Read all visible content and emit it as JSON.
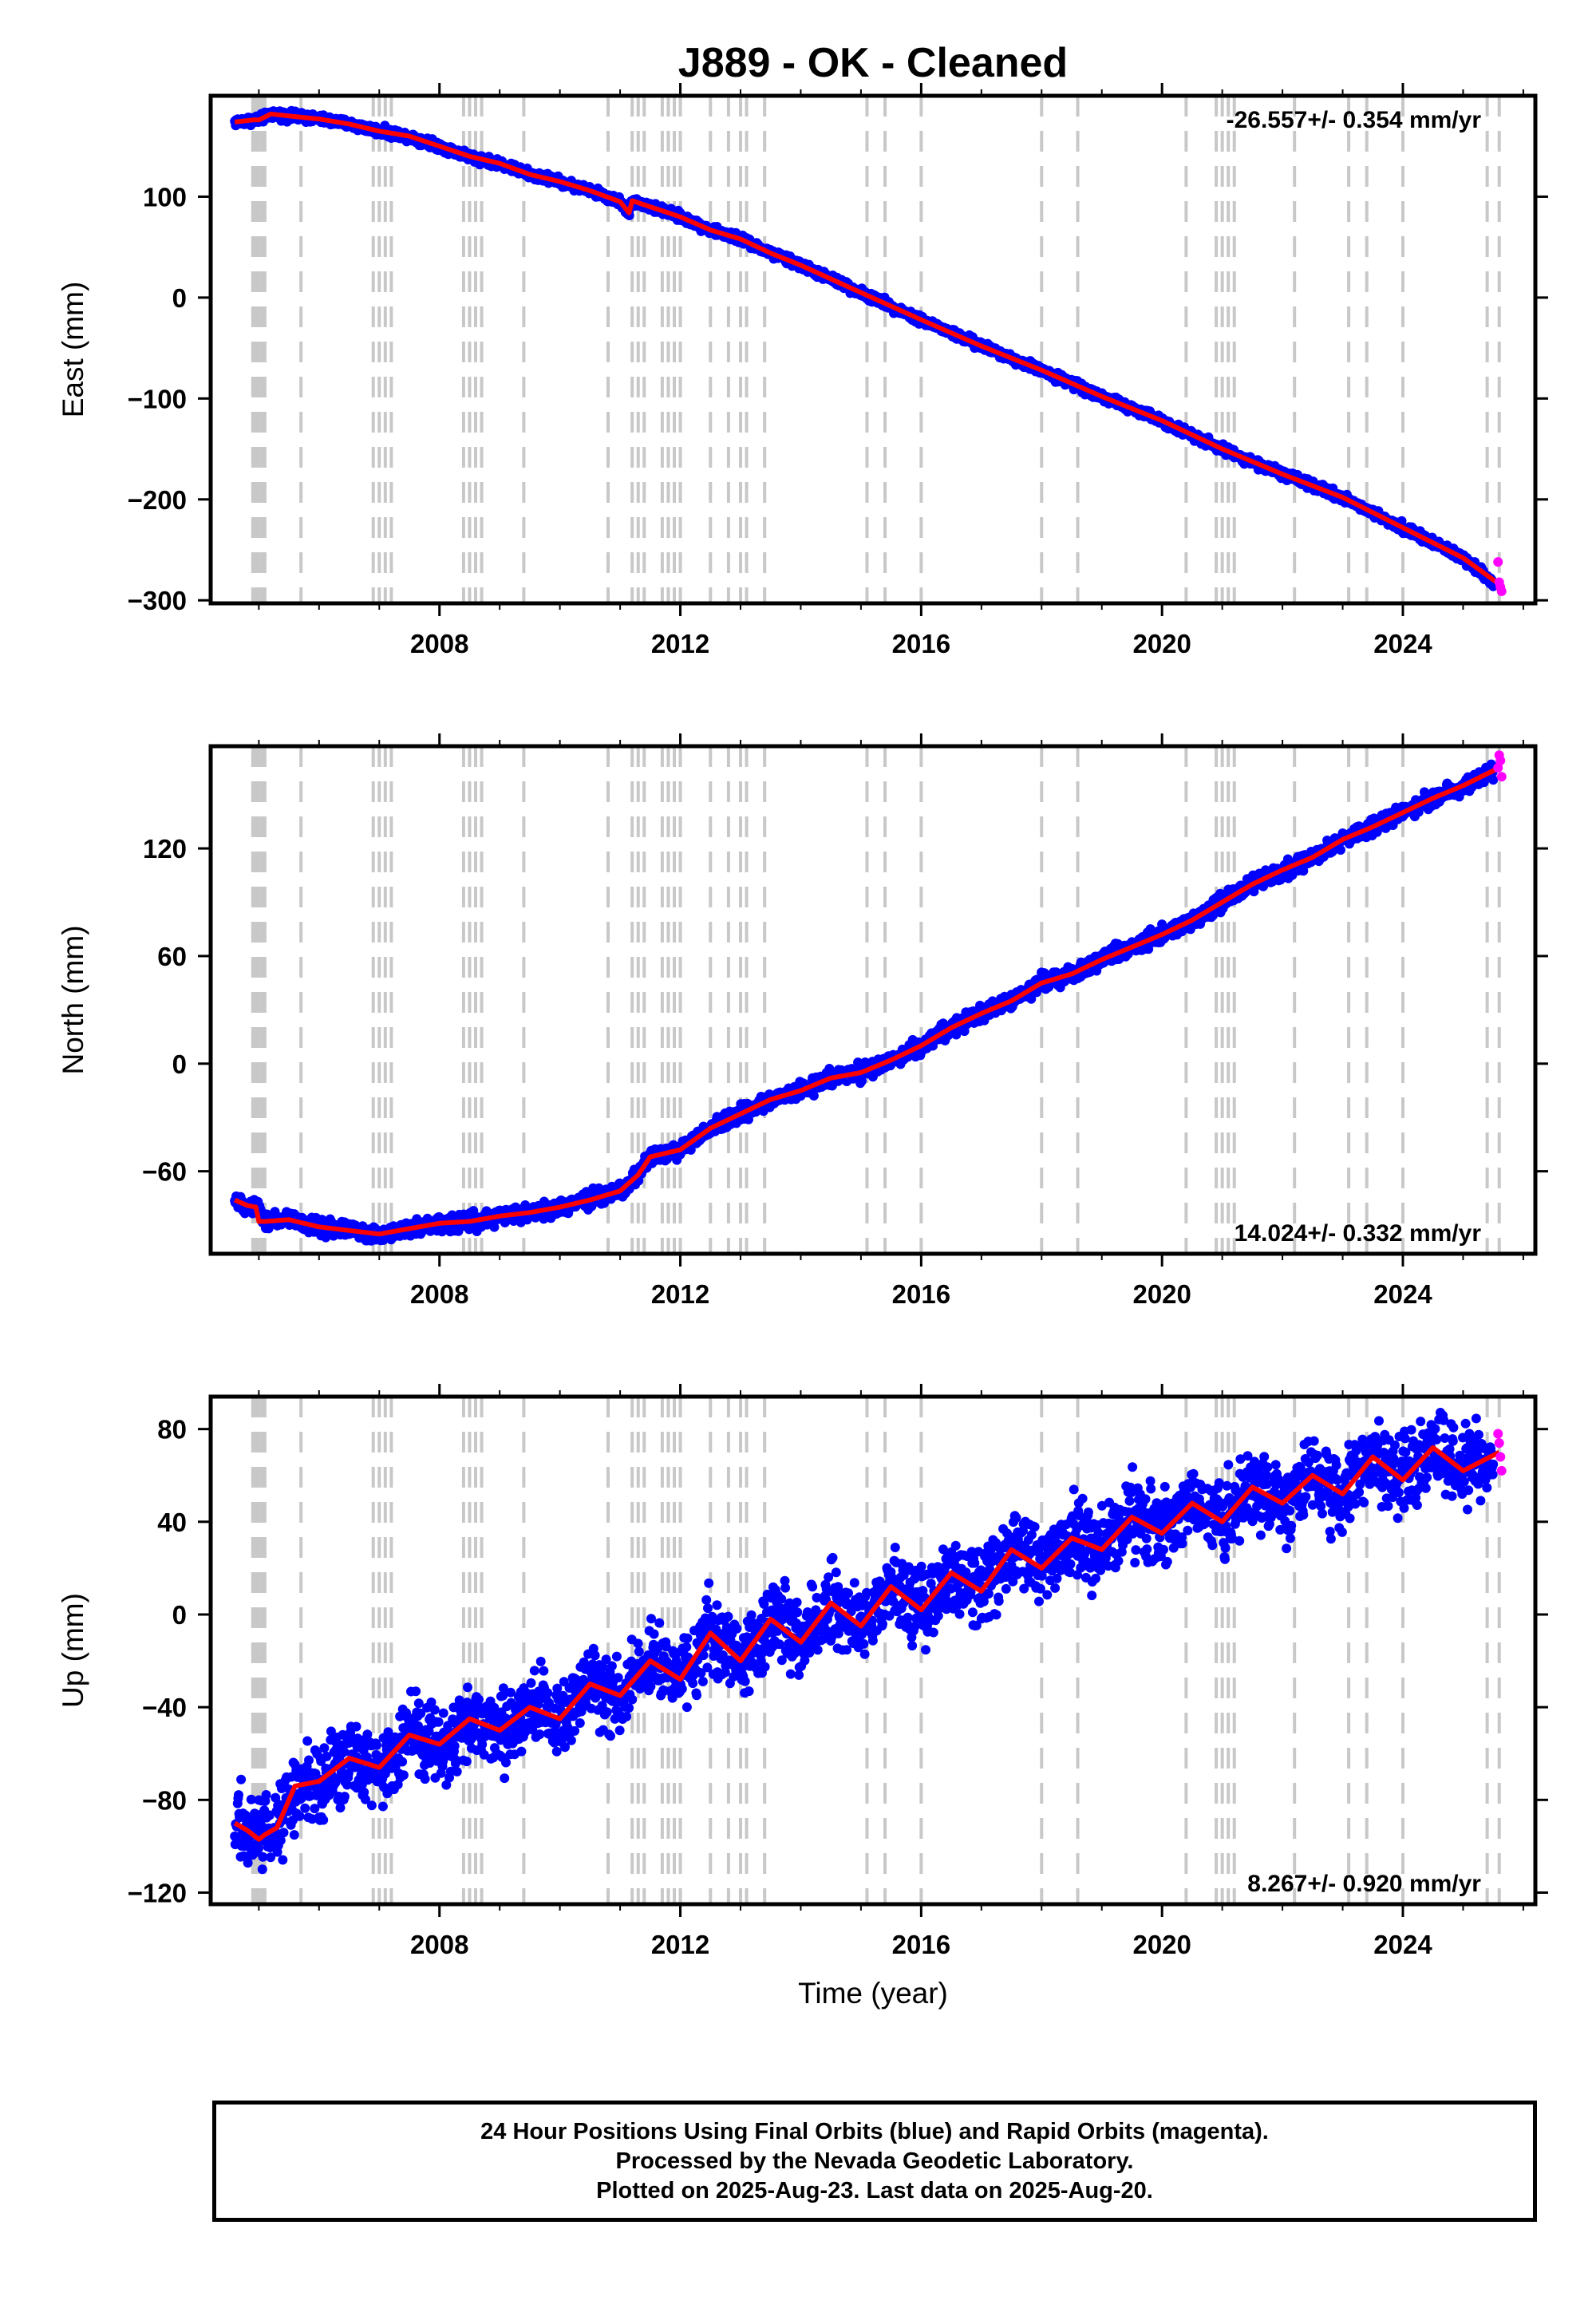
{
  "title": "J889  - OK - Cleaned",
  "x_axis_label": "Time (year)",
  "colors": {
    "final_orbits": "#0000ff",
    "rapid_orbits": "#ff00ff",
    "model": "#ff0000",
    "event_lines": "#c8c8c8",
    "frame": "#000000"
  },
  "caption": {
    "line1": "24 Hour Positions Using Final Orbits (blue) and Rapid Orbits (magenta).",
    "line2": "Processed by the Nevada Geodetic Laboratory.",
    "line3": "Plotted on 2025-Aug-23. Last data on 2025-Aug-20."
  },
  "chart_data": [
    {
      "type": "scatter",
      "component": "east",
      "ylabel": "East (mm)",
      "rate_text": "-26.557+/- 0.354 mm/yr",
      "rate_position": "top-right",
      "xlim": [
        2004.2,
        2026.2
      ],
      "ylim": [
        -303,
        200
      ],
      "x_ticks": [
        2008,
        2012,
        2016,
        2020,
        2024
      ],
      "y_ticks": [
        -300,
        -200,
        -100,
        0,
        100
      ],
      "y_tick_labels": [
        "−300",
        "−200",
        "−100",
        "0",
        "100"
      ],
      "grid": false,
      "series": [
        {
          "name": "Final Orbits",
          "color": "#0000ff",
          "x": [
            2004.6,
            2004.9,
            2005.0,
            2005.2,
            2005.5,
            2006.0,
            2006.5,
            2007.0,
            2007.5,
            2008.0,
            2008.5,
            2009.0,
            2009.5,
            2010.0,
            2010.5,
            2011.0,
            2011.15,
            2011.2,
            2011.5,
            2012.0,
            2012.5,
            2013.0,
            2013.5,
            2014.0,
            2015.0,
            2016.0,
            2017.0,
            2018.0,
            2019.0,
            2020.0,
            2021.0,
            2022.0,
            2023.0,
            2024.0,
            2025.0,
            2025.5
          ],
          "y": [
            174,
            176,
            176,
            182,
            180,
            177,
            172,
            165,
            160,
            150,
            140,
            133,
            122,
            115,
            106,
            95,
            84,
            96,
            90,
            80,
            67,
            58,
            44,
            32,
            5,
            -22,
            -48,
            -72,
            -98,
            -122,
            -150,
            -175,
            -198,
            -228,
            -258,
            -282
          ]
        },
        {
          "name": "Rapid Orbits",
          "color": "#ff00ff",
          "x": [
            2025.58,
            2025.6,
            2025.62,
            2025.64
          ],
          "y": [
            -262,
            -282,
            -287,
            -291
          ]
        },
        {
          "name": "Model",
          "color": "#ff0000",
          "x": [
            2004.6,
            2004.9,
            2005.0,
            2005.2,
            2005.5,
            2006.0,
            2006.5,
            2007.0,
            2007.5,
            2008.0,
            2008.5,
            2009.0,
            2009.5,
            2010.0,
            2010.5,
            2011.0,
            2011.15,
            2011.2,
            2011.5,
            2012.0,
            2012.5,
            2013.0,
            2013.5,
            2014.0,
            2015.0,
            2016.0,
            2017.0,
            2018.0,
            2019.0,
            2020.0,
            2021.0,
            2022.0,
            2023.0,
            2024.0,
            2025.0,
            2025.6
          ],
          "y": [
            174,
            176,
            176,
            182,
            180,
            177,
            172,
            165,
            160,
            150,
            140,
            133,
            122,
            115,
            106,
            95,
            84,
            96,
            90,
            80,
            67,
            58,
            44,
            32,
            5,
            -22,
            -48,
            -72,
            -98,
            -122,
            -150,
            -175,
            -198,
            -228,
            -258,
            -284
          ]
        }
      ]
    },
    {
      "type": "scatter",
      "component": "north",
      "ylabel": "North (mm)",
      "rate_text": "14.024+/- 0.332 mm/yr",
      "rate_position": "bottom-right",
      "xlim": [
        2004.2,
        2026.2
      ],
      "ylim": [
        -106,
        177
      ],
      "x_ticks": [
        2008,
        2012,
        2016,
        2020,
        2024
      ],
      "y_ticks": [
        -60,
        0,
        60,
        120
      ],
      "y_tick_labels": [
        "−60",
        "0",
        "60",
        "120"
      ],
      "grid": false,
      "series": [
        {
          "name": "Final Orbits",
          "color": "#0000ff",
          "x": [
            2004.6,
            2004.8,
            2005.0,
            2005.1,
            2005.5,
            2006.0,
            2006.5,
            2007.0,
            2007.5,
            2008.0,
            2008.5,
            2009.0,
            2009.5,
            2010.0,
            2010.5,
            2011.0,
            2011.3,
            2011.5,
            2012.0,
            2012.5,
            2013.0,
            2013.5,
            2014.0,
            2014.5,
            2015.0,
            2015.5,
            2016.0,
            2016.5,
            2017.0,
            2017.5,
            2018.0,
            2018.5,
            2019.0,
            2019.5,
            2020.0,
            2020.5,
            2021.0,
            2021.5,
            2022.0,
            2022.5,
            2023.0,
            2023.5,
            2024.0,
            2024.5,
            2025.0,
            2025.5
          ],
          "y": [
            -76,
            -79,
            -80,
            -88,
            -87,
            -91,
            -93,
            -95,
            -92,
            -89,
            -88,
            -85,
            -83,
            -80,
            -76,
            -71,
            -62,
            -52,
            -48,
            -36,
            -28,
            -20,
            -15,
            -8,
            -5,
            2,
            10,
            20,
            28,
            35,
            45,
            50,
            58,
            65,
            72,
            80,
            90,
            100,
            108,
            115,
            125,
            132,
            140,
            148,
            155,
            163
          ]
        },
        {
          "name": "Rapid Orbits",
          "color": "#ff00ff",
          "x": [
            2025.58,
            2025.6,
            2025.62,
            2025.64
          ],
          "y": [
            165,
            172,
            169,
            160
          ]
        },
        {
          "name": "Model",
          "color": "#ff0000",
          "x": [
            2004.6,
            2004.8,
            2004.95,
            2005.0,
            2005.1,
            2005.5,
            2006.0,
            2006.5,
            2007.0,
            2007.5,
            2008.0,
            2008.5,
            2009.0,
            2009.5,
            2010.0,
            2010.5,
            2011.0,
            2011.3,
            2011.5,
            2012.0,
            2012.5,
            2013.0,
            2013.5,
            2014.0,
            2014.5,
            2015.0,
            2015.5,
            2016.0,
            2016.5,
            2017.0,
            2017.5,
            2018.0,
            2018.5,
            2019.0,
            2019.5,
            2020.0,
            2020.5,
            2021.0,
            2021.5,
            2022.0,
            2022.5,
            2023.0,
            2023.5,
            2024.0,
            2024.5,
            2025.0,
            2025.6
          ],
          "y": [
            -76,
            -79,
            -80,
            -88,
            -88,
            -87,
            -91,
            -93,
            -95,
            -92,
            -89,
            -88,
            -85,
            -83,
            -80,
            -76,
            -71,
            -62,
            -52,
            -48,
            -36,
            -28,
            -20,
            -15,
            -8,
            -5,
            2,
            10,
            20,
            28,
            35,
            45,
            50,
            58,
            65,
            72,
            80,
            90,
            100,
            108,
            115,
            125,
            132,
            140,
            148,
            155,
            165
          ]
        }
      ]
    },
    {
      "type": "scatter",
      "component": "up",
      "ylabel": "Up (mm)",
      "rate_text": "8.267+/- 0.920 mm/yr",
      "rate_position": "bottom-right",
      "xlim": [
        2004.2,
        2026.2
      ],
      "ylim": [
        -125,
        94
      ],
      "x_ticks": [
        2008,
        2012,
        2016,
        2020,
        2024
      ],
      "y_ticks": [
        -120,
        -80,
        -40,
        0,
        40,
        80
      ],
      "y_tick_labels": [
        "−120",
        "−80",
        "−40",
        "0",
        "40",
        "80"
      ],
      "grid": false,
      "series": [
        {
          "name": "Final Orbits",
          "color": "#0000ff",
          "x": [
            2004.6,
            2005.0,
            2005.3,
            2005.6,
            2006.0,
            2006.5,
            2007.0,
            2007.5,
            2008.0,
            2008.5,
            2009.0,
            2009.5,
            2010.0,
            2010.5,
            2011.0,
            2011.5,
            2012.0,
            2012.5,
            2013.0,
            2013.5,
            2014.0,
            2014.5,
            2015.0,
            2015.5,
            2016.0,
            2016.5,
            2017.0,
            2017.5,
            2018.0,
            2018.5,
            2019.0,
            2019.5,
            2020.0,
            2020.5,
            2021.0,
            2021.5,
            2022.0,
            2022.5,
            2023.0,
            2023.5,
            2024.0,
            2024.5,
            2025.0,
            2025.5
          ],
          "y": [
            -90,
            -95,
            -92,
            -75,
            -72,
            -62,
            -66,
            -52,
            -56,
            -45,
            -50,
            -40,
            -45,
            -30,
            -35,
            -20,
            -28,
            -8,
            -20,
            -2,
            -12,
            5,
            -5,
            12,
            2,
            18,
            10,
            28,
            20,
            33,
            28,
            42,
            35,
            48,
            40,
            55,
            48,
            60,
            52,
            68,
            58,
            72,
            62,
            68
          ]
        },
        {
          "name": "Rapid Orbits",
          "color": "#ff00ff",
          "x": [
            2025.58,
            2025.6,
            2025.62,
            2025.64
          ],
          "y": [
            78,
            74,
            68,
            62
          ]
        },
        {
          "name": "Model",
          "color": "#ff0000",
          "x": [
            2004.6,
            2004.8,
            2005.0,
            2005.1,
            2005.3,
            2005.6,
            2006.0,
            2006.5,
            2007.0,
            2007.5,
            2008.0,
            2008.5,
            2009.0,
            2009.5,
            2010.0,
            2010.5,
            2011.0,
            2011.5,
            2012.0,
            2012.5,
            2013.0,
            2013.5,
            2014.0,
            2014.5,
            2015.0,
            2015.5,
            2016.0,
            2016.5,
            2017.0,
            2017.5,
            2018.0,
            2018.5,
            2019.0,
            2019.5,
            2020.0,
            2020.5,
            2021.0,
            2021.5,
            2022.0,
            2022.5,
            2023.0,
            2023.5,
            2024.0,
            2024.5,
            2025.0,
            2025.6
          ],
          "y": [
            -90,
            -93,
            -97,
            -95,
            -92,
            -74,
            -72,
            -62,
            -66,
            -52,
            -56,
            -45,
            -50,
            -40,
            -45,
            -30,
            -35,
            -20,
            -28,
            -8,
            -20,
            -2,
            -12,
            5,
            -5,
            12,
            2,
            18,
            10,
            28,
            20,
            33,
            28,
            42,
            35,
            48,
            40,
            55,
            48,
            60,
            52,
            68,
            58,
            72,
            62,
            70
          ]
        }
      ]
    }
  ],
  "event_lines": [
    2004.9,
    2004.95,
    2005.0,
    2005.05,
    2005.1,
    2005.7,
    2006.9,
    2007.0,
    2007.1,
    2007.2,
    2008.4,
    2008.5,
    2008.6,
    2008.7,
    2009.4,
    2010.8,
    2011.2,
    2011.3,
    2011.4,
    2011.7,
    2011.8,
    2011.9,
    2012.0,
    2012.5,
    2012.8,
    2013.0,
    2013.1,
    2013.4,
    2015.1,
    2015.4,
    2016.0,
    2018.0,
    2018.6,
    2020.4,
    2020.9,
    2021.0,
    2021.1,
    2021.2,
    2022.2,
    2023.1,
    2023.4,
    2024.0,
    2025.4,
    2025.6
  ]
}
